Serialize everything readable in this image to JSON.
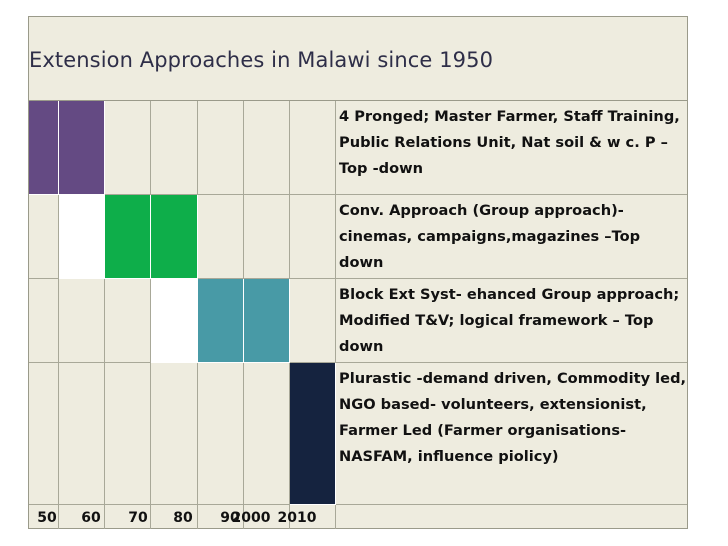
{
  "title": "Extension Approaches in Malawi since 1950",
  "decades": [
    "50",
    "60",
    "70",
    "80",
    "90",
    "2000",
    "2010"
  ],
  "colors": {
    "background": "#eeecdf",
    "purple": "#644a83",
    "white": "#ffffff",
    "green": "#0eae4a",
    "teal": "#489aa6",
    "navy": "#15233f"
  },
  "rows": [
    {
      "description": "4 Pronged; Master Farmer, Staff Training, Public Relations Unit, Nat soil & w c. P – Top -down",
      "fills": [
        "purple",
        "purple",
        "",
        "",
        "",
        "",
        ""
      ]
    },
    {
      "description": "Conv. Approach (Group approach)- cinemas, campaigns,magazines –Top down",
      "fills": [
        "",
        "white",
        "green",
        "green",
        "",
        "",
        ""
      ]
    },
    {
      "description": "Block Ext Syst- ehanced Group approach; Modified T&V;  logical framework – Top down",
      "fills": [
        "",
        "",
        "",
        "white",
        "teal",
        "teal",
        ""
      ]
    },
    {
      "description": "Plurastic -demand driven, Commodity led, NGO based- volunteers, extensionist, Farmer Led (Farmer organisations- NASFAM, influence piolicy)",
      "fills": [
        "",
        "",
        "",
        "",
        "",
        "",
        "navy"
      ]
    }
  ]
}
